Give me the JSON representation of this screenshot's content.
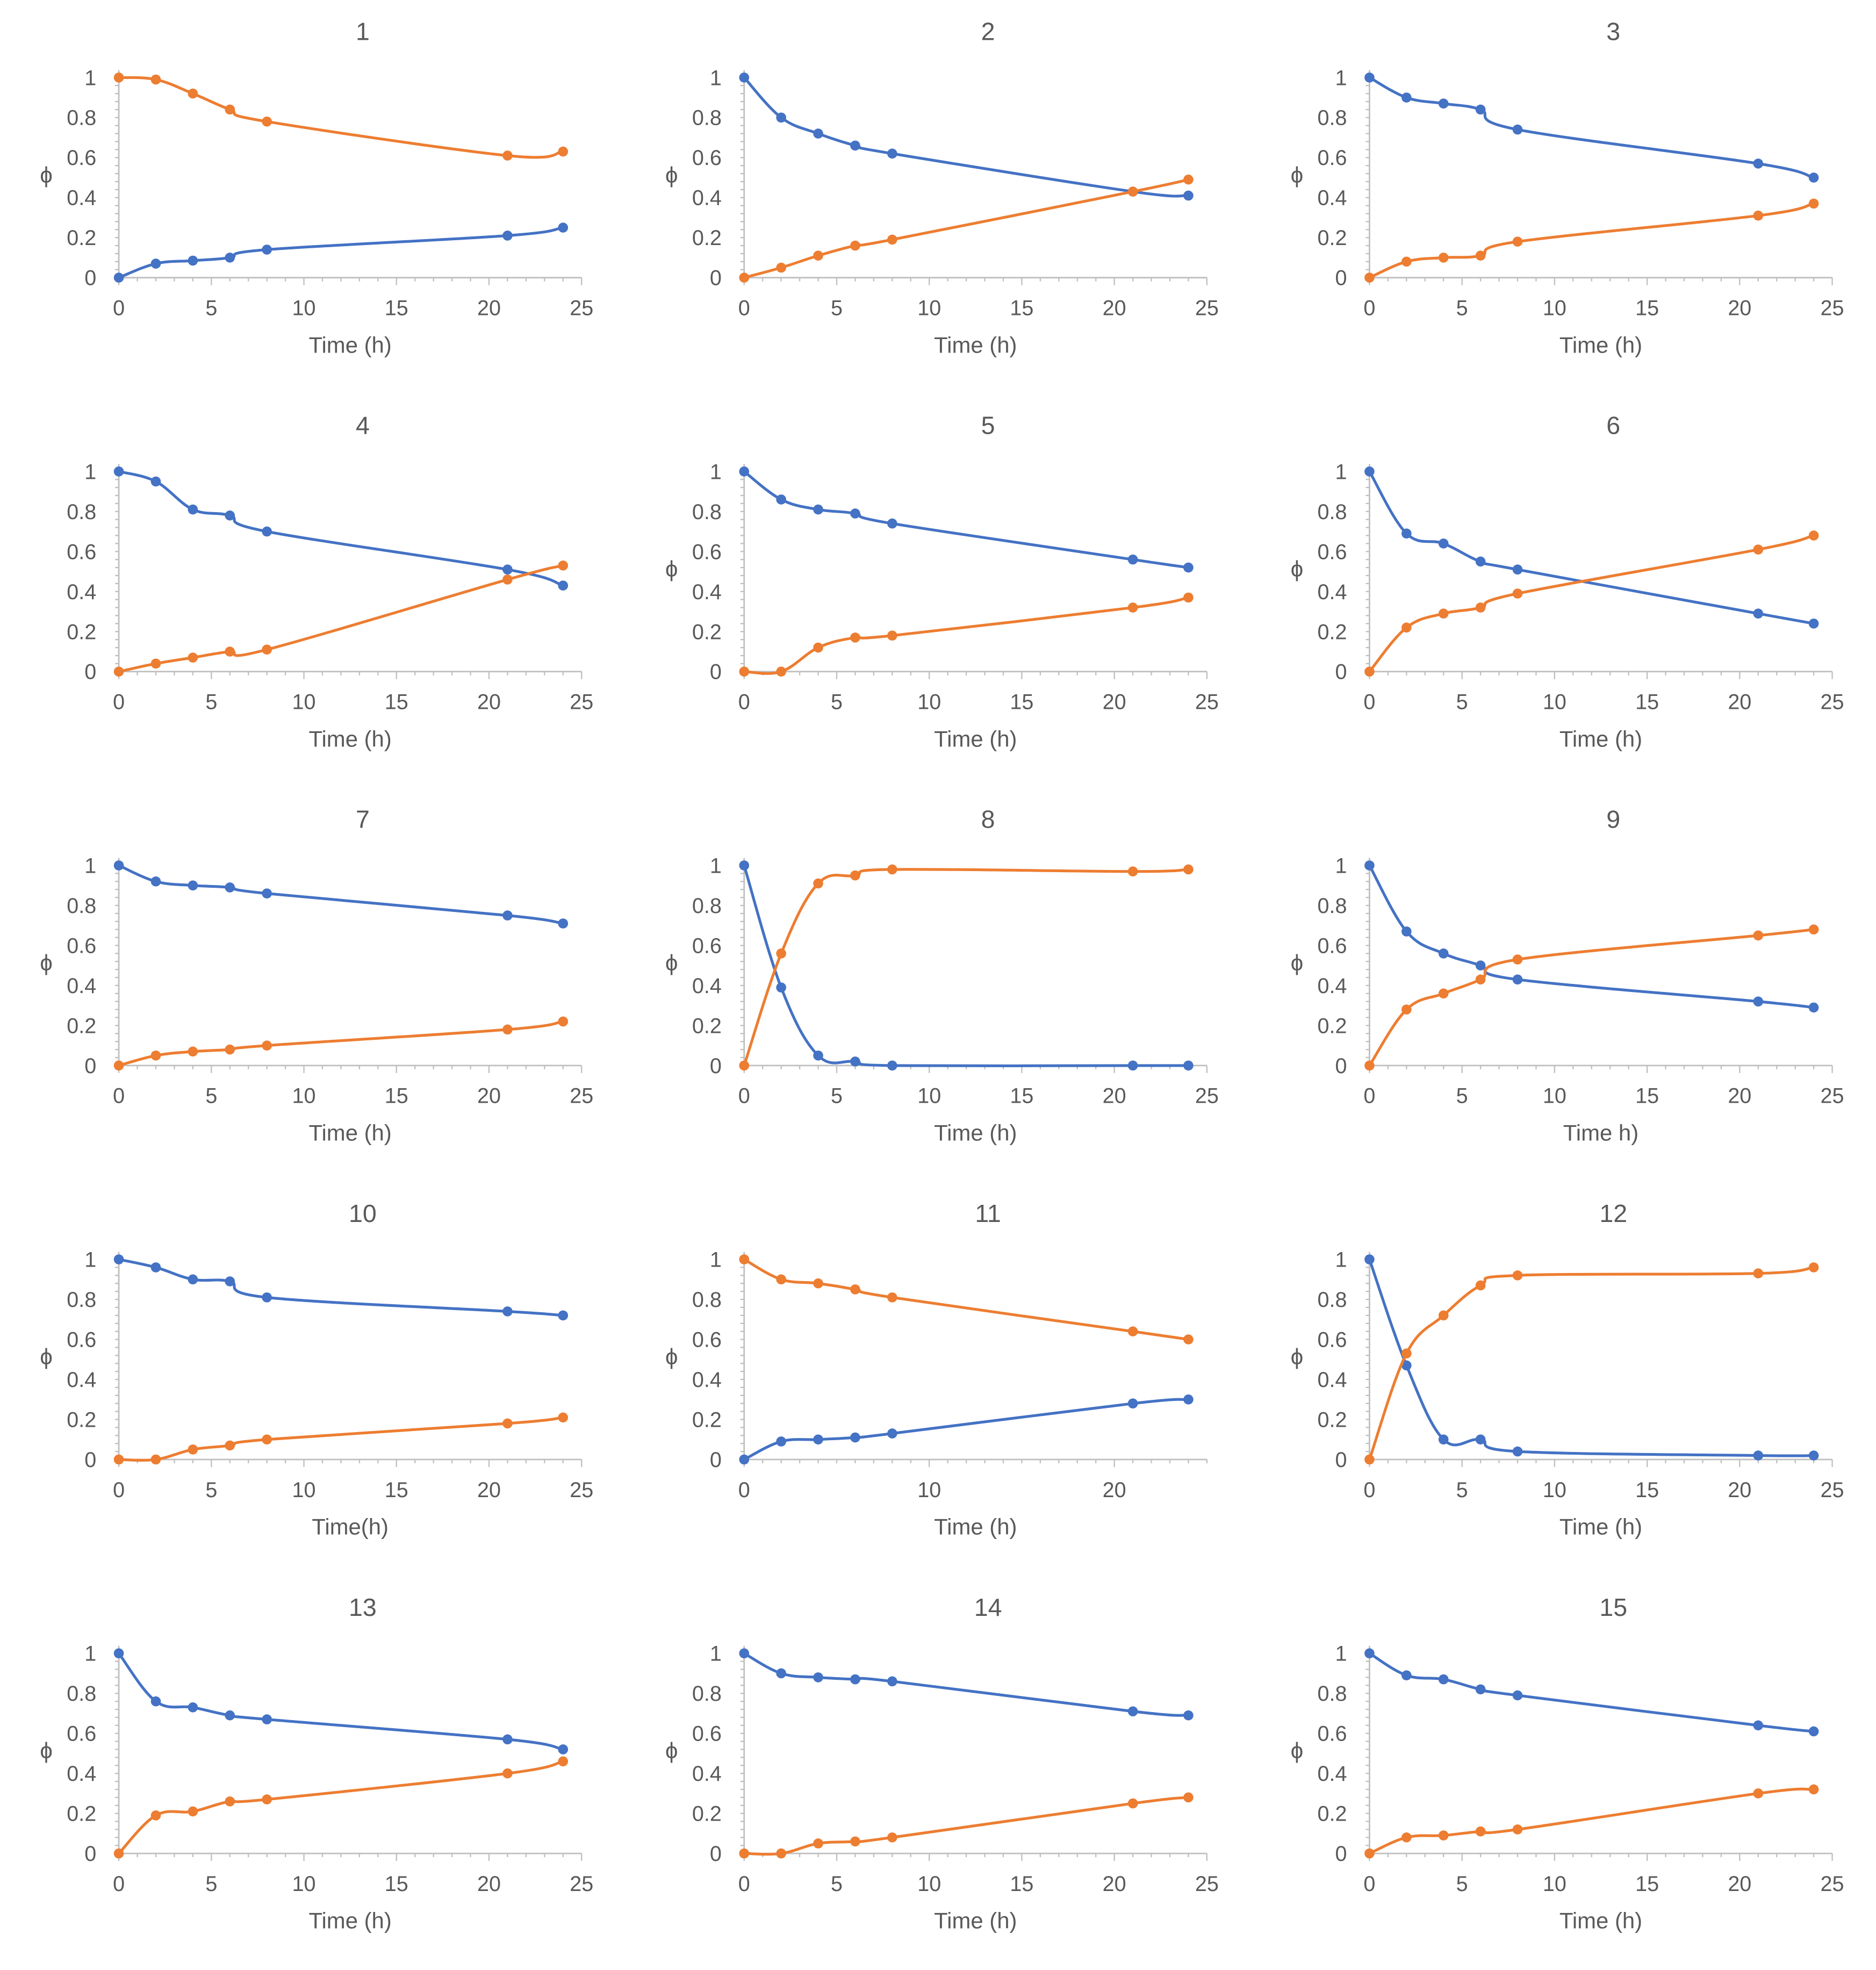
{
  "colors": {
    "series_a": "#4472C4",
    "series_b": "#ED7D31",
    "axis": "#BFBFBF",
    "text": "#595959"
  },
  "chart_data": [
    {
      "type": "line",
      "title": "1",
      "xlabel": "Time (h)",
      "ylabel": "ϕ",
      "x": [
        0,
        2,
        4,
        6,
        8,
        21,
        24
      ],
      "xlim": [
        0,
        25
      ],
      "xticks": [
        0,
        5,
        10,
        15,
        20,
        25
      ],
      "ylim": [
        0,
        1
      ],
      "yticks": [
        0,
        0.2,
        0.4,
        0.6,
        0.8,
        1
      ],
      "series": [
        {
          "name": "blue",
          "values": [
            0,
            0.07,
            0.085,
            0.1,
            0.14,
            0.21,
            0.25
          ]
        },
        {
          "name": "orange",
          "values": [
            1,
            0.99,
            0.92,
            0.84,
            0.78,
            0.61,
            0.63
          ]
        }
      ]
    },
    {
      "type": "line",
      "title": "2",
      "xlabel": "Time (h)",
      "ylabel": "ϕ",
      "x": [
        0,
        2,
        4,
        6,
        8,
        21,
        24
      ],
      "xlim": [
        0,
        25
      ],
      "xticks": [
        0,
        5,
        10,
        15,
        20,
        25
      ],
      "ylim": [
        0,
        1
      ],
      "yticks": [
        0,
        0.2,
        0.4,
        0.6,
        0.8,
        1
      ],
      "series": [
        {
          "name": "blue",
          "values": [
            1,
            0.8,
            0.72,
            0.66,
            0.62,
            0.43,
            0.41
          ]
        },
        {
          "name": "orange",
          "values": [
            0,
            0.05,
            0.11,
            0.16,
            0.19,
            0.43,
            0.49
          ]
        }
      ]
    },
    {
      "type": "line",
      "title": "3",
      "xlabel": "Time (h)",
      "ylabel": "ϕ",
      "x": [
        0,
        2,
        4,
        6,
        8,
        21,
        24
      ],
      "xlim": [
        0,
        25
      ],
      "xticks": [
        0,
        5,
        10,
        15,
        20,
        25
      ],
      "ylim": [
        0,
        1
      ],
      "yticks": [
        0,
        0.2,
        0.4,
        0.6,
        0.8,
        1
      ],
      "series": [
        {
          "name": "blue",
          "values": [
            1,
            0.9,
            0.87,
            0.84,
            0.74,
            0.57,
            0.5
          ]
        },
        {
          "name": "orange",
          "values": [
            0,
            0.08,
            0.1,
            0.11,
            0.18,
            0.31,
            0.37
          ]
        }
      ]
    },
    {
      "type": "line",
      "title": "4",
      "xlabel": "Time (h)",
      "ylabel": "",
      "x": [
        0,
        2,
        4,
        6,
        8,
        21,
        24
      ],
      "xlim": [
        0,
        25
      ],
      "xticks": [
        0,
        5,
        10,
        15,
        20,
        25
      ],
      "ylim": [
        0,
        1
      ],
      "yticks": [
        0,
        0.2,
        0.4,
        0.6,
        0.8,
        1
      ],
      "series": [
        {
          "name": "blue",
          "values": [
            1,
            0.95,
            0.81,
            0.78,
            0.7,
            0.51,
            0.43
          ]
        },
        {
          "name": "orange",
          "values": [
            0,
            0.04,
            0.07,
            0.1,
            0.11,
            0.46,
            0.53
          ]
        }
      ]
    },
    {
      "type": "line",
      "title": "5",
      "xlabel": "Time (h)",
      "ylabel": "ϕ",
      "x": [
        0,
        2,
        4,
        6,
        8,
        21,
        24
      ],
      "xlim": [
        0,
        25
      ],
      "xticks": [
        0,
        5,
        10,
        15,
        20,
        25
      ],
      "ylim": [
        0,
        1
      ],
      "yticks": [
        0,
        0.2,
        0.4,
        0.6,
        0.8,
        1
      ],
      "series": [
        {
          "name": "blue",
          "values": [
            1,
            0.86,
            0.81,
            0.79,
            0.74,
            0.56,
            0.52
          ]
        },
        {
          "name": "orange",
          "values": [
            0,
            0,
            0.12,
            0.17,
            0.18,
            0.32,
            0.37
          ]
        }
      ]
    },
    {
      "type": "line",
      "title": "6",
      "xlabel": "Time (h)",
      "ylabel": "ϕ",
      "x": [
        0,
        2,
        4,
        6,
        8,
        21,
        24
      ],
      "xlim": [
        0,
        25
      ],
      "xticks": [
        0,
        5,
        10,
        15,
        20,
        25
      ],
      "ylim": [
        0,
        1
      ],
      "yticks": [
        0,
        0.2,
        0.4,
        0.6,
        0.8,
        1
      ],
      "series": [
        {
          "name": "blue",
          "values": [
            1,
            0.69,
            0.64,
            0.55,
            0.51,
            0.29,
            0.24
          ]
        },
        {
          "name": "orange",
          "values": [
            0,
            0.22,
            0.29,
            0.32,
            0.39,
            0.61,
            0.68
          ]
        }
      ]
    },
    {
      "type": "line",
      "title": "7",
      "xlabel": "Time (h)",
      "ylabel": "ϕ",
      "x": [
        0,
        2,
        4,
        6,
        8,
        21,
        24
      ],
      "xlim": [
        0,
        25
      ],
      "xticks": [
        0,
        5,
        10,
        15,
        20,
        25
      ],
      "ylim": [
        0,
        1
      ],
      "yticks": [
        0,
        0.2,
        0.4,
        0.6,
        0.8,
        1
      ],
      "series": [
        {
          "name": "blue",
          "values": [
            1,
            0.92,
            0.9,
            0.89,
            0.86,
            0.75,
            0.71
          ]
        },
        {
          "name": "orange",
          "values": [
            0,
            0.05,
            0.07,
            0.08,
            0.1,
            0.18,
            0.22
          ]
        }
      ]
    },
    {
      "type": "line",
      "title": "8",
      "xlabel": "Time (h)",
      "ylabel": "ϕ",
      "x": [
        0,
        2,
        4,
        6,
        8,
        21,
        24
      ],
      "xlim": [
        0,
        25
      ],
      "xticks": [
        0,
        5,
        10,
        15,
        20,
        25
      ],
      "ylim": [
        0,
        1
      ],
      "yticks": [
        0,
        0.2,
        0.4,
        0.6,
        0.8,
        1
      ],
      "series": [
        {
          "name": "blue",
          "values": [
            1,
            0.39,
            0.05,
            0.02,
            0,
            0,
            0
          ]
        },
        {
          "name": "orange",
          "values": [
            0,
            0.56,
            0.91,
            0.95,
            0.98,
            0.97,
            0.98
          ]
        }
      ]
    },
    {
      "type": "line",
      "title": "9",
      "xlabel": "Time h)",
      "ylabel": "ϕ",
      "x": [
        0,
        2,
        4,
        6,
        8,
        21,
        24
      ],
      "xlim": [
        0,
        25
      ],
      "xticks": [
        0,
        5,
        10,
        15,
        20,
        25
      ],
      "ylim": [
        0,
        1
      ],
      "yticks": [
        0,
        0.2,
        0.4,
        0.6,
        0.8,
        1
      ],
      "series": [
        {
          "name": "blue",
          "values": [
            1,
            0.67,
            0.56,
            0.5,
            0.43,
            0.32,
            0.29
          ]
        },
        {
          "name": "orange",
          "values": [
            0,
            0.28,
            0.36,
            0.43,
            0.53,
            0.65,
            0.68
          ]
        }
      ]
    },
    {
      "type": "line",
      "title": "10",
      "xlabel": "Time(h)",
      "ylabel": "ϕ",
      "x": [
        0,
        2,
        4,
        6,
        8,
        21,
        24
      ],
      "xlim": [
        0,
        25
      ],
      "xticks": [
        0,
        5,
        10,
        15,
        20,
        25
      ],
      "ylim": [
        0,
        1
      ],
      "yticks": [
        0,
        0.2,
        0.4,
        0.6,
        0.8,
        1
      ],
      "series": [
        {
          "name": "blue",
          "values": [
            1,
            0.96,
            0.9,
            0.89,
            0.81,
            0.74,
            0.72
          ]
        },
        {
          "name": "orange",
          "values": [
            0,
            0,
            0.05,
            0.07,
            0.1,
            0.18,
            0.21
          ]
        }
      ]
    },
    {
      "type": "line",
      "title": "11",
      "xlabel": "Time (h)",
      "ylabel": "ϕ",
      "x": [
        0,
        2,
        4,
        6,
        8,
        21,
        24
      ],
      "xlim": [
        0,
        25
      ],
      "xticks": [
        0,
        10,
        20
      ],
      "ylim": [
        0,
        1
      ],
      "yticks": [
        0,
        0.2,
        0.4,
        0.6,
        0.8,
        1
      ],
      "series": [
        {
          "name": "blue",
          "values": [
            0,
            0.09,
            0.1,
            0.11,
            0.13,
            0.28,
            0.3
          ]
        },
        {
          "name": "orange",
          "values": [
            1,
            0.9,
            0.88,
            0.85,
            0.81,
            0.64,
            0.6
          ]
        }
      ]
    },
    {
      "type": "line",
      "title": "12",
      "xlabel": "Time (h)",
      "ylabel": "ϕ",
      "x": [
        0,
        2,
        4,
        6,
        8,
        21,
        24
      ],
      "xlim": [
        0,
        25
      ],
      "xticks": [
        0,
        5,
        10,
        15,
        20,
        25
      ],
      "ylim": [
        0,
        1
      ],
      "yticks": [
        0,
        0.2,
        0.4,
        0.6,
        0.8,
        1
      ],
      "series": [
        {
          "name": "blue",
          "values": [
            1,
            0.47,
            0.1,
            0.1,
            0.04,
            0.02,
            0.02
          ]
        },
        {
          "name": "orange",
          "values": [
            0,
            0.53,
            0.72,
            0.87,
            0.92,
            0.93,
            0.96
          ]
        }
      ]
    },
    {
      "type": "line",
      "title": "13",
      "xlabel": "Time (h)",
      "ylabel": "ϕ",
      "x": [
        0,
        2,
        4,
        6,
        8,
        21,
        24
      ],
      "xlim": [
        0,
        25
      ],
      "xticks": [
        0,
        5,
        10,
        15,
        20,
        25
      ],
      "ylim": [
        0,
        1
      ],
      "yticks": [
        0,
        0.2,
        0.4,
        0.6,
        0.8,
        1
      ],
      "series": [
        {
          "name": "blue",
          "values": [
            1,
            0.76,
            0.73,
            0.69,
            0.67,
            0.57,
            0.52
          ]
        },
        {
          "name": "orange",
          "values": [
            0,
            0.19,
            0.21,
            0.26,
            0.27,
            0.4,
            0.46
          ]
        }
      ]
    },
    {
      "type": "line",
      "title": "14",
      "xlabel": "Time (h)",
      "ylabel": "ϕ",
      "x": [
        0,
        2,
        4,
        6,
        8,
        21,
        24
      ],
      "xlim": [
        0,
        25
      ],
      "xticks": [
        0,
        5,
        10,
        15,
        20,
        25
      ],
      "ylim": [
        0,
        1
      ],
      "yticks": [
        0,
        0.2,
        0.4,
        0.6,
        0.8,
        1
      ],
      "series": [
        {
          "name": "blue",
          "values": [
            1,
            0.9,
            0.88,
            0.87,
            0.86,
            0.71,
            0.69
          ]
        },
        {
          "name": "orange",
          "values": [
            0,
            0,
            0.05,
            0.06,
            0.08,
            0.25,
            0.28
          ]
        }
      ]
    },
    {
      "type": "line",
      "title": "15",
      "xlabel": "Time (h)",
      "ylabel": "ϕ",
      "x": [
        0,
        2,
        4,
        6,
        8,
        21,
        24
      ],
      "xlim": [
        0,
        25
      ],
      "xticks": [
        0,
        5,
        10,
        15,
        20,
        25
      ],
      "ylim": [
        0,
        1
      ],
      "yticks": [
        0,
        0.2,
        0.4,
        0.6,
        0.8,
        1
      ],
      "series": [
        {
          "name": "blue",
          "values": [
            1,
            0.89,
            0.87,
            0.82,
            0.79,
            0.64,
            0.61
          ]
        },
        {
          "name": "orange",
          "values": [
            0,
            0.08,
            0.09,
            0.11,
            0.12,
            0.3,
            0.32
          ]
        }
      ]
    }
  ]
}
